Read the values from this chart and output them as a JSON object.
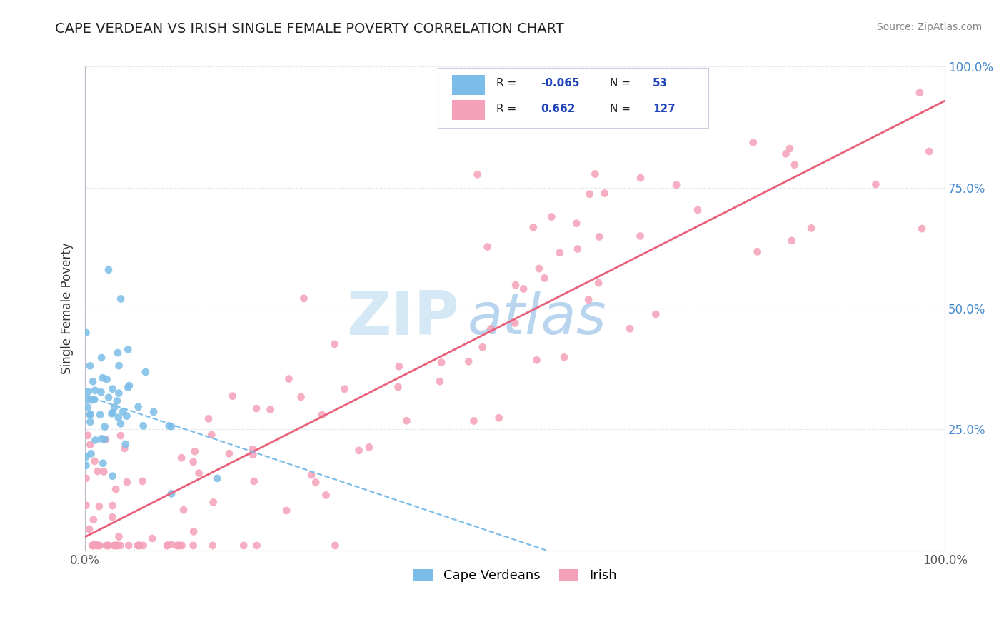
{
  "title": "CAPE VERDEAN VS IRISH SINGLE FEMALE POVERTY CORRELATION CHART",
  "source": "Source: ZipAtlas.com",
  "ylabel": "Single Female Poverty",
  "xlim": [
    0,
    1
  ],
  "ylim": [
    0,
    1
  ],
  "cape_verdean_R": -0.065,
  "cape_verdean_N": 53,
  "irish_R": 0.662,
  "irish_N": 127,
  "cape_verdean_color": "#7bbde8",
  "irish_color": "#f4a0b8",
  "cape_verdean_line_color": "#7bbde8",
  "irish_line_color": "#e8607a",
  "watermark_zip": "ZIP",
  "watermark_atlas": "atlas",
  "watermark_color": "#d0e8f8",
  "watermark_atlas_color": "#b0cce8",
  "legend_R_color": "#2244bb",
  "legend_N_color": "#2244bb",
  "background_color": "#ffffff",
  "cv_seed": 12345,
  "ir_seed": 67890
}
